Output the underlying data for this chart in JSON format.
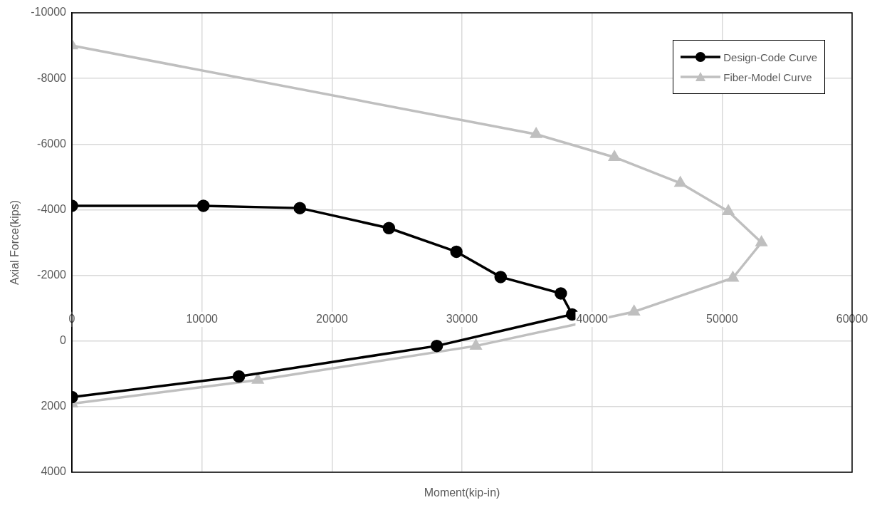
{
  "chart_data": {
    "type": "line",
    "xlabel": "Moment(kip-in)",
    "ylabel": "Axial Force(kips)",
    "xlim": [
      0,
      60000
    ],
    "xticks": [
      0,
      10000,
      20000,
      30000,
      40000,
      50000,
      60000
    ],
    "ylim": [
      4000,
      -10000
    ],
    "yticks": [
      -10000,
      -8000,
      -6000,
      -4000,
      -2000,
      0,
      2000,
      4000
    ],
    "grid": true,
    "legend": "top right",
    "line_style": "solid",
    "series": [
      {
        "name": "Design-Code Curve",
        "color": "#000000",
        "marker": "circle",
        "x": [
          0,
          10110,
          17530,
          24380,
          29570,
          32970,
          37600,
          38470,
          28060,
          12840,
          0
        ],
        "values": [
          -4120,
          -4120,
          -4050,
          -3440,
          -2720,
          -1950,
          -1450,
          -810,
          150,
          1080,
          1710
        ]
      },
      {
        "name": "Fiber-Model Curve",
        "color": "#bfbfbf",
        "marker": "triangle",
        "x": [
          0,
          35700,
          41720,
          46790,
          50480,
          53030,
          50830,
          43230,
          31070,
          14300,
          0
        ],
        "values": [
          -9000,
          -6300,
          -5600,
          -4810,
          -3950,
          -3000,
          -1920,
          -890,
          150,
          1190,
          1910
        ]
      }
    ]
  }
}
